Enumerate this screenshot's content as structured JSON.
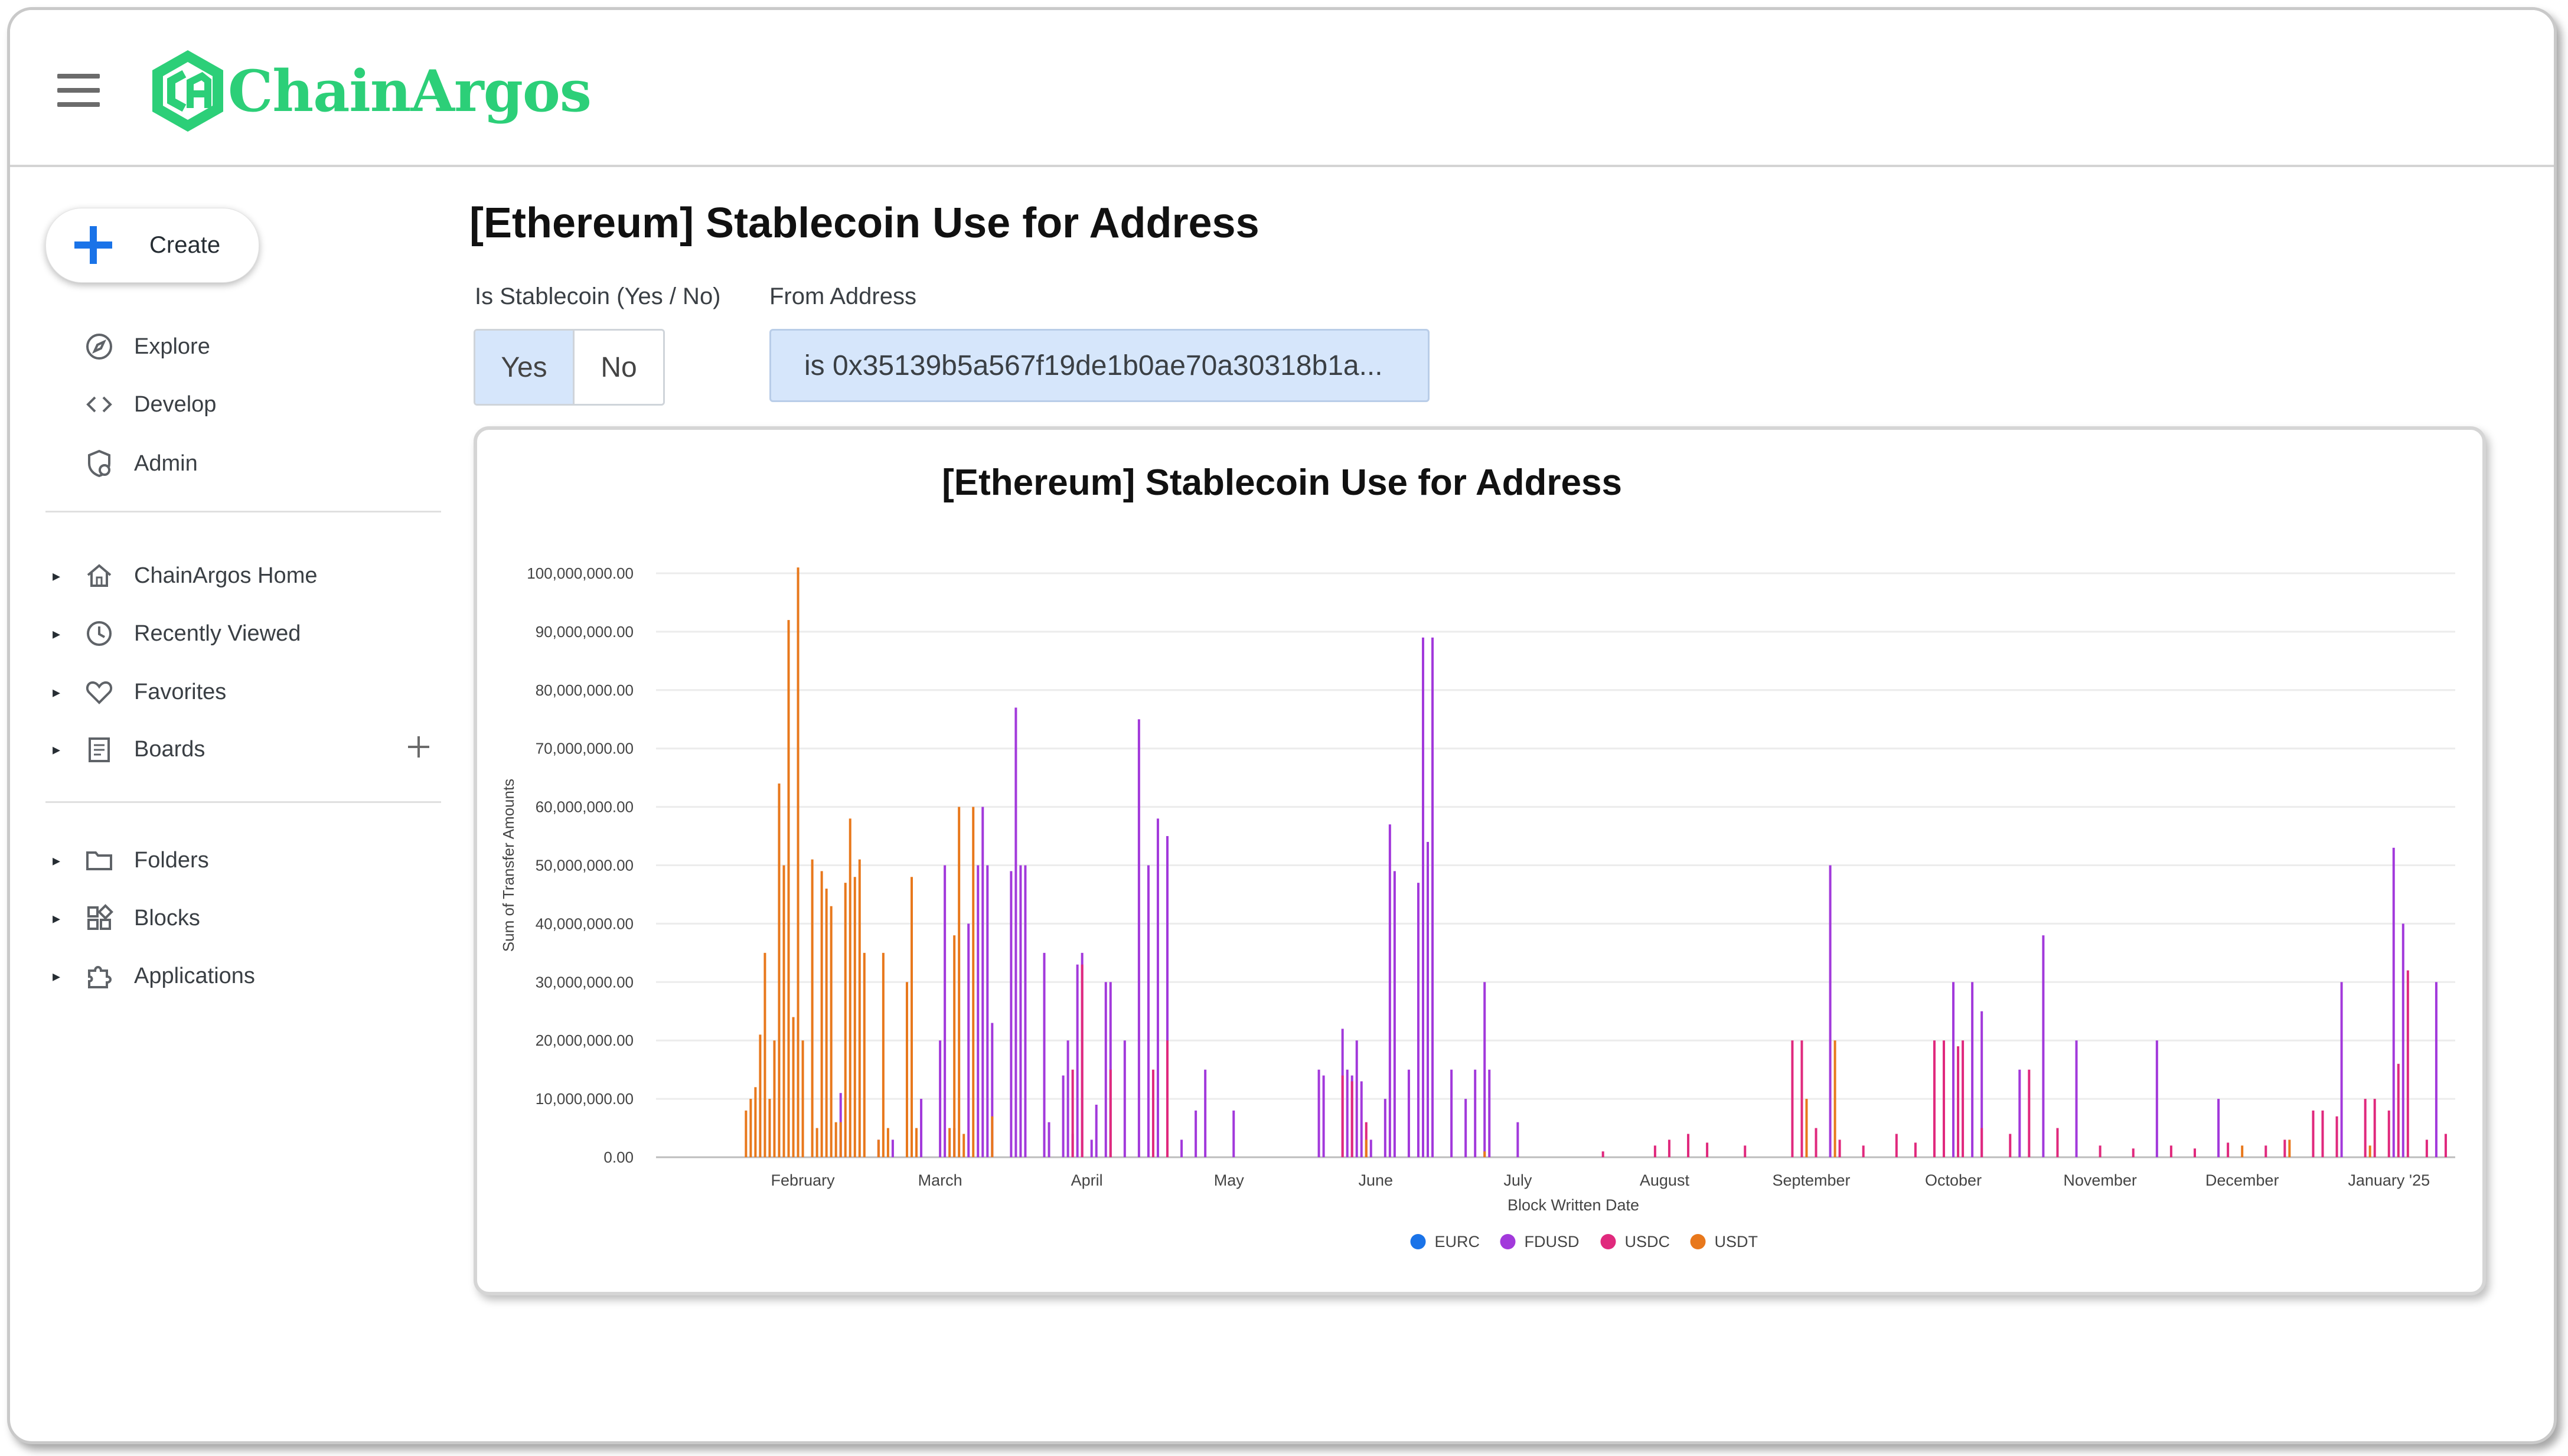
{
  "app": {
    "logo_text": "ChainArgos",
    "brand_color": "#2ccf78"
  },
  "sidebar": {
    "create_label": "Create",
    "top_items": [
      {
        "label": "Explore",
        "icon": "compass-icon"
      },
      {
        "label": "Develop",
        "icon": "code-icon"
      },
      {
        "label": "Admin",
        "icon": "admin-shield-icon"
      }
    ],
    "items": [
      {
        "label": "ChainArgos Home",
        "icon": "home-icon"
      },
      {
        "label": "Recently Viewed",
        "icon": "clock-icon"
      },
      {
        "label": "Favorites",
        "icon": "heart-icon"
      },
      {
        "label": "Boards",
        "icon": "board-icon"
      },
      {
        "label": "Folders",
        "icon": "folder-icon"
      },
      {
        "label": "Blocks",
        "icon": "blocks-icon"
      },
      {
        "label": "Applications",
        "icon": "puzzle-icon"
      }
    ]
  },
  "main": {
    "title": "[Ethereum] Stablecoin Use for Address",
    "filters": {
      "stablecoin_label": "Is Stablecoin (Yes / No)",
      "yes_label": "Yes",
      "no_label": "No",
      "selected": "Yes",
      "address_label": "From Address",
      "address_value": "is 0x35139b5a567f19de1b0ae70a30318b1a..."
    }
  },
  "chart_data": {
    "type": "bar",
    "title": "[Ethereum] Stablecoin Use for Address",
    "xlabel": "Block Written Date",
    "ylabel": "Sum of Transfer Amounts",
    "ylim": [
      0,
      100000000
    ],
    "y_ticks": [
      "0.00",
      "10,000,000.00",
      "20,000,000.00",
      "30,000,000.00",
      "40,000,000.00",
      "50,000,000.00",
      "60,000,000.00",
      "70,000,000.00",
      "80,000,000.00",
      "90,000,000.00",
      "100,000,000.00"
    ],
    "x_range_days": [
      0,
      380
    ],
    "x_ticks": [
      {
        "label": "February",
        "day": 31
      },
      {
        "label": "March",
        "day": 60
      },
      {
        "label": "April",
        "day": 91
      },
      {
        "label": "May",
        "day": 121
      },
      {
        "label": "June",
        "day": 152
      },
      {
        "label": "July",
        "day": 182
      },
      {
        "label": "August",
        "day": 213
      },
      {
        "label": "September",
        "day": 244
      },
      {
        "label": "October",
        "day": 274
      },
      {
        "label": "November",
        "day": 305
      },
      {
        "label": "December",
        "day": 335
      },
      {
        "label": "January '25",
        "day": 366
      }
    ],
    "legend_position": "bottom",
    "grid": true,
    "series": [
      {
        "name": "EURC",
        "color": "#1a73e8",
        "points": []
      },
      {
        "name": "FDUSD",
        "color": "#a239db",
        "points": [
          [
            39,
            11000000
          ],
          [
            47,
            3000000
          ],
          [
            50,
            3000000
          ],
          [
            56,
            10000000
          ],
          [
            60,
            20000000
          ],
          [
            61,
            50000000
          ],
          [
            63,
            5000000
          ],
          [
            66,
            40000000
          ],
          [
            68,
            50000000
          ],
          [
            69,
            60000000
          ],
          [
            70,
            50000000
          ],
          [
            71,
            23000000
          ],
          [
            75,
            49000000
          ],
          [
            76,
            77000000
          ],
          [
            77,
            50000000
          ],
          [
            78,
            50000000
          ],
          [
            82,
            35000000
          ],
          [
            83,
            6000000
          ],
          [
            86,
            14000000
          ],
          [
            87,
            20000000
          ],
          [
            88,
            4000000
          ],
          [
            89,
            33000000
          ],
          [
            90,
            35000000
          ],
          [
            92,
            3000000
          ],
          [
            93,
            9000000
          ],
          [
            95,
            30000000
          ],
          [
            96,
            30000000
          ],
          [
            99,
            20000000
          ],
          [
            102,
            75000000
          ],
          [
            104,
            50000000
          ],
          [
            106,
            58000000
          ],
          [
            108,
            55000000
          ],
          [
            111,
            3000000
          ],
          [
            114,
            8000000
          ],
          [
            116,
            15000000
          ],
          [
            122,
            8000000
          ],
          [
            140,
            15000000
          ],
          [
            141,
            14000000
          ],
          [
            145,
            22000000
          ],
          [
            146,
            15000000
          ],
          [
            147,
            14000000
          ],
          [
            148,
            20000000
          ],
          [
            149,
            13000000
          ],
          [
            151,
            3000000
          ],
          [
            154,
            10000000
          ],
          [
            155,
            57000000
          ],
          [
            156,
            49000000
          ],
          [
            159,
            15000000
          ],
          [
            161,
            47000000
          ],
          [
            162,
            89000000
          ],
          [
            163,
            54000000
          ],
          [
            164,
            89000000
          ],
          [
            168,
            15000000
          ],
          [
            171,
            10000000
          ],
          [
            173,
            15000000
          ],
          [
            175,
            30000000
          ],
          [
            176,
            15000000
          ],
          [
            182,
            6000000
          ],
          [
            248,
            50000000
          ],
          [
            274,
            30000000
          ],
          [
            278,
            30000000
          ],
          [
            280,
            25000000
          ],
          [
            288,
            15000000
          ],
          [
            293,
            38000000
          ],
          [
            300,
            20000000
          ],
          [
            317,
            20000000
          ],
          [
            330,
            10000000
          ],
          [
            356,
            30000000
          ],
          [
            367,
            53000000
          ],
          [
            369,
            40000000
          ],
          [
            376,
            30000000
          ]
        ]
      },
      {
        "name": "USDC",
        "color": "#e0297d",
        "points": [
          [
            88,
            15000000
          ],
          [
            90,
            33000000
          ],
          [
            96,
            15000000
          ],
          [
            105,
            15000000
          ],
          [
            108,
            20000000
          ],
          [
            145,
            14000000
          ],
          [
            147,
            13000000
          ],
          [
            150,
            6000000
          ],
          [
            200,
            1000000
          ],
          [
            211,
            2000000
          ],
          [
            214,
            3000000
          ],
          [
            218,
            4000000
          ],
          [
            222,
            2500000
          ],
          [
            230,
            2000000
          ],
          [
            240,
            20000000
          ],
          [
            242,
            20000000
          ],
          [
            245,
            5000000
          ],
          [
            250,
            3000000
          ],
          [
            255,
            2000000
          ],
          [
            262,
            4000000
          ],
          [
            266,
            2500000
          ],
          [
            270,
            20000000
          ],
          [
            272,
            20000000
          ],
          [
            275,
            19000000
          ],
          [
            276,
            20000000
          ],
          [
            280,
            5000000
          ],
          [
            286,
            4000000
          ],
          [
            290,
            15000000
          ],
          [
            296,
            5000000
          ],
          [
            305,
            2000000
          ],
          [
            312,
            1500000
          ],
          [
            320,
            2000000
          ],
          [
            325,
            1500000
          ],
          [
            332,
            2500000
          ],
          [
            340,
            2000000
          ],
          [
            344,
            3000000
          ],
          [
            350,
            8000000
          ],
          [
            352,
            8000000
          ],
          [
            355,
            7000000
          ],
          [
            361,
            10000000
          ],
          [
            363,
            10000000
          ],
          [
            366,
            8000000
          ],
          [
            368,
            16000000
          ],
          [
            370,
            32000000
          ],
          [
            374,
            3000000
          ],
          [
            378,
            4000000
          ]
        ]
      },
      {
        "name": "USDT",
        "color": "#e8781c",
        "points": [
          [
            19,
            8000000
          ],
          [
            20,
            10000000
          ],
          [
            21,
            12000000
          ],
          [
            22,
            21000000
          ],
          [
            23,
            35000000
          ],
          [
            24,
            10000000
          ],
          [
            25,
            20000000
          ],
          [
            26,
            64000000
          ],
          [
            27,
            50000000
          ],
          [
            28,
            92000000
          ],
          [
            29,
            24000000
          ],
          [
            30,
            101000000
          ],
          [
            31,
            20000000
          ],
          [
            33,
            51000000
          ],
          [
            34,
            5000000
          ],
          [
            35,
            49000000
          ],
          [
            36,
            46000000
          ],
          [
            37,
            43000000
          ],
          [
            38,
            6000000
          ],
          [
            39,
            6000000
          ],
          [
            40,
            47000000
          ],
          [
            41,
            58000000
          ],
          [
            42,
            48000000
          ],
          [
            43,
            51000000
          ],
          [
            44,
            35000000
          ],
          [
            47,
            3000000
          ],
          [
            48,
            35000000
          ],
          [
            49,
            5000000
          ],
          [
            53,
            30000000
          ],
          [
            54,
            48000000
          ],
          [
            55,
            5000000
          ],
          [
            62,
            5000000
          ],
          [
            63,
            38000000
          ],
          [
            64,
            60000000
          ],
          [
            65,
            4000000
          ],
          [
            67,
            60000000
          ],
          [
            71,
            7000000
          ],
          [
            150,
            3000000
          ],
          [
            175,
            1000000
          ],
          [
            243,
            10000000
          ],
          [
            249,
            20000000
          ],
          [
            335,
            2000000
          ],
          [
            345,
            3000000
          ],
          [
            362,
            2000000
          ]
        ]
      }
    ]
  }
}
